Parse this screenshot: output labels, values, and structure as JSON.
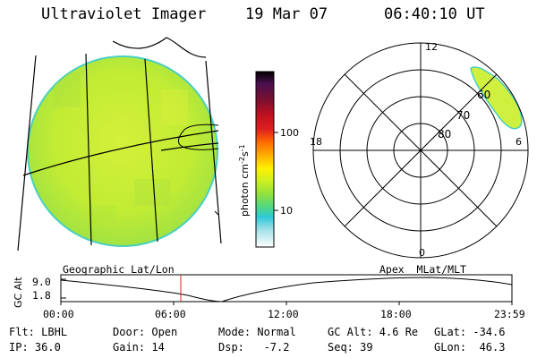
{
  "header": {
    "instrument": "Ultraviolet Imager",
    "date": "19 Mar 07",
    "time": "06:40:10 UT"
  },
  "colorbar": {
    "unit_label": "photon cm",
    "unit_exp1": "-2",
    "unit_mid": "s",
    "unit_exp2": "-1",
    "tick_100": "100",
    "tick_10": "10",
    "colors": [
      "#000000",
      "#4a1050",
      "#7a1030",
      "#b00020",
      "#e02020",
      "#ff6a00",
      "#ffb000",
      "#fff000",
      "#d8f020",
      "#a8e840",
      "#70e060",
      "#40d8a0",
      "#30c8d8",
      "#90e0e8",
      "#c8eef0",
      "#ffffff"
    ]
  },
  "polar": {
    "mlt_top": "12",
    "mlt_left": "18",
    "mlt_right": "6",
    "mlt_bottom": "0",
    "lat_60": "60",
    "lat_70": "70",
    "lat_80": "80"
  },
  "timeline": {
    "axis_label": "GC Alt",
    "left_label": "Geographic Lat/Lon",
    "right_label": "Apex  MLat/MLT",
    "y_max": "9.0",
    "y_min": "1.8",
    "ticks": [
      "00:00",
      "06:00",
      "12:00",
      "18:00",
      "23:59"
    ],
    "current_time_marker": "06:40"
  },
  "info": {
    "flt": "Flt: LBHL",
    "ip": "IP: 36.0",
    "door": "Door: Open",
    "gain": "Gain: 14",
    "mode": "Mode: Normal",
    "dsp": "Dsp:   -7.2",
    "gc_alt": "GC Alt: 4.6 Re",
    "seq": "Seq: 39",
    "glat": "GLat: -34.6",
    "glon": "GLon:  46.3"
  },
  "colors": {
    "disk_fill": "#c6ee32",
    "disk_edge": "#48d0c0",
    "aurora_fill": "#d0f040",
    "marker": "#e02020"
  }
}
